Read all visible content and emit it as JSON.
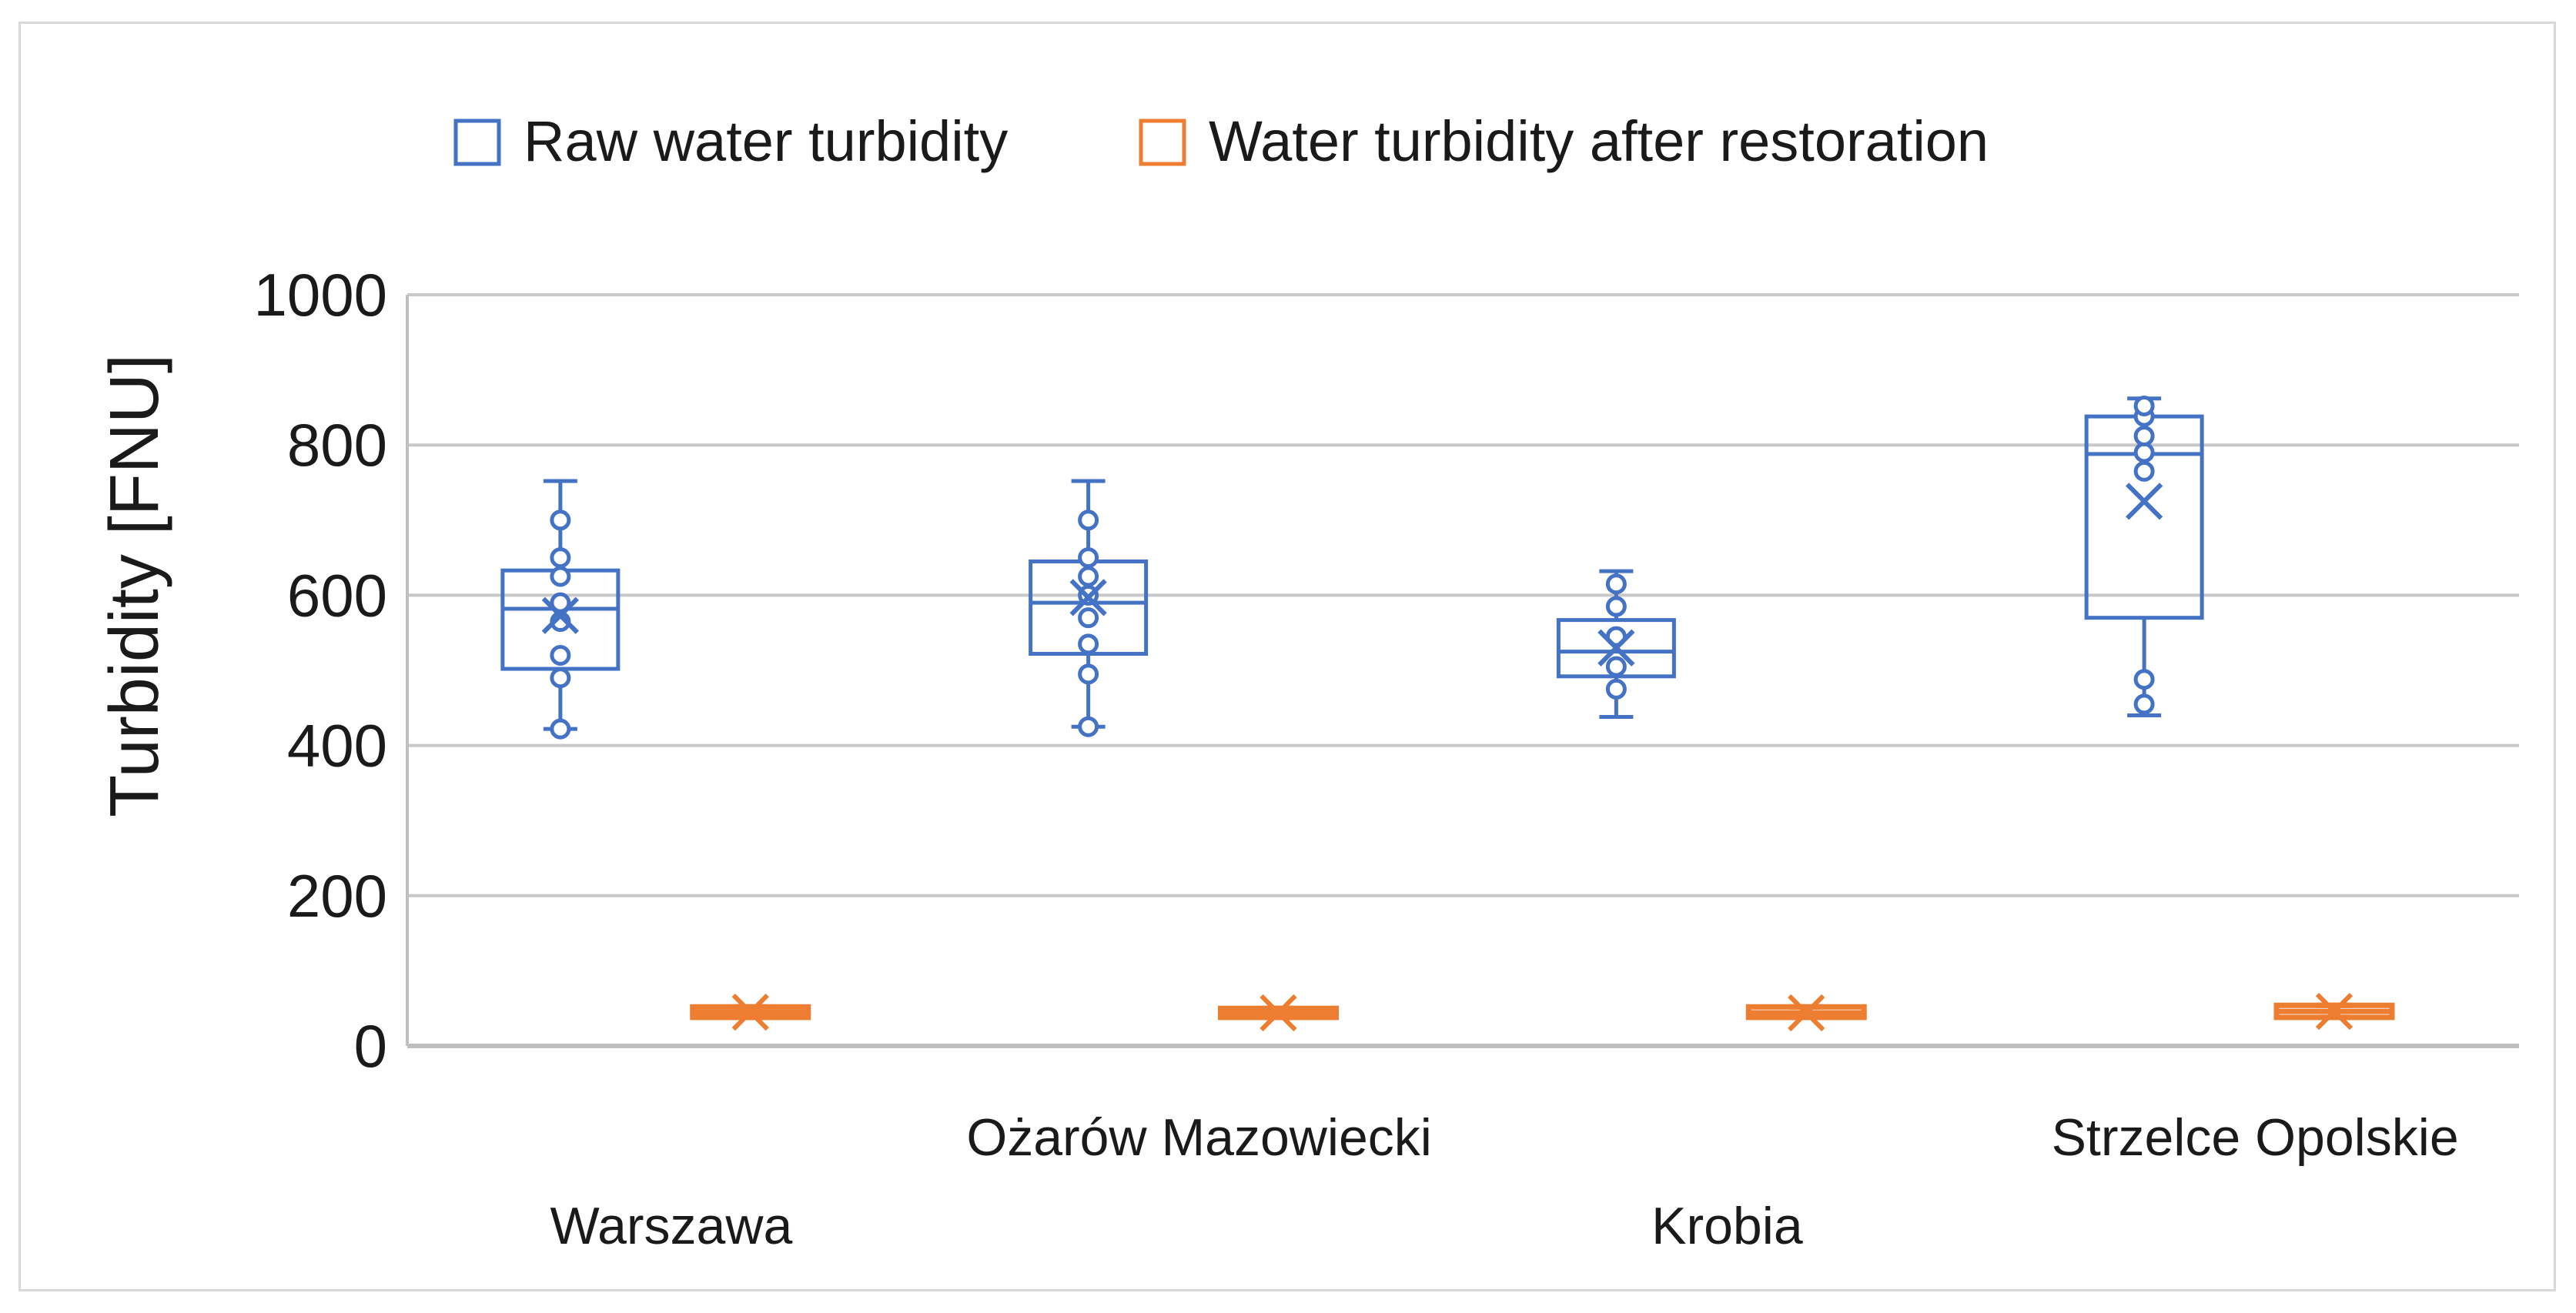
{
  "chart_data": {
    "type": "box",
    "ylabel": "Turbidity [FNU]",
    "ylim": [
      0,
      1000
    ],
    "yticks": [
      "0",
      "200",
      "400",
      "600",
      "800",
      "1000"
    ],
    "grid": true,
    "legend_position": "top-center",
    "categories": [
      "Warszawa",
      "Ożarów Mazowiecki",
      "Krobia",
      "Strzelce Opolskie"
    ],
    "series": [
      {
        "name": "Raw water turbidity",
        "color": "#4472c4",
        "boxes": [
          {
            "min": 422,
            "q1": 502,
            "median": 582,
            "q3": 633,
            "max": 752,
            "mean": 573,
            "points": [
              422,
              490,
              520,
              565,
              590,
              625,
              650,
              700
            ]
          },
          {
            "min": 425,
            "q1": 522,
            "median": 590,
            "q3": 645,
            "max": 752,
            "mean": 597,
            "points": [
              425,
              495,
              535,
              570,
              600,
              625,
              650,
              700
            ]
          },
          {
            "min": 438,
            "q1": 492,
            "median": 525,
            "q3": 567,
            "max": 632,
            "mean": 530,
            "points": [
              475,
              505,
              545,
              585,
              615
            ]
          },
          {
            "min": 440,
            "q1": 570,
            "median": 788,
            "q3": 838,
            "max": 862,
            "mean": 725,
            "points": [
              455,
              488,
              765,
              790,
              812,
              838,
              852
            ]
          }
        ]
      },
      {
        "name": "Water turbidity after restoration",
        "color": "#ed7d31",
        "boxes": [
          {
            "min": 38,
            "q1": 38,
            "median": 45,
            "q3": 52,
            "max": 52,
            "mean": 45,
            "points": []
          },
          {
            "min": 38,
            "q1": 38,
            "median": 44,
            "q3": 50,
            "max": 50,
            "mean": 44,
            "points": []
          },
          {
            "min": 38,
            "q1": 38,
            "median": 44,
            "q3": 52,
            "max": 52,
            "mean": 44,
            "points": []
          },
          {
            "min": 38,
            "q1": 38,
            "median": 46,
            "q3": 54,
            "max": 54,
            "mean": 46,
            "points": []
          }
        ]
      }
    ]
  }
}
